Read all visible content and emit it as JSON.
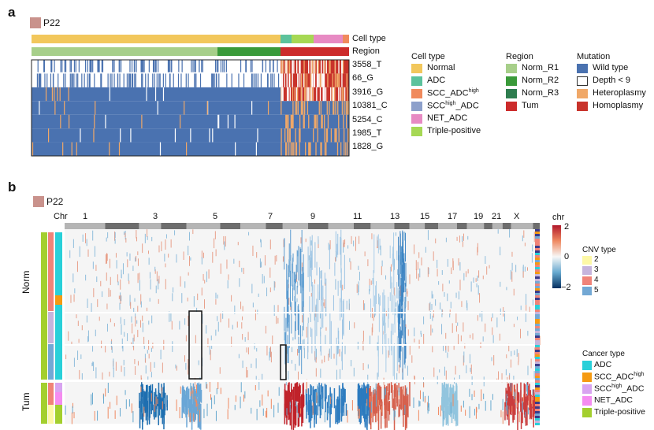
{
  "panel_a": {
    "label": "a",
    "patient": "P22",
    "patient_color": "#c9928c",
    "row_labels": [
      "Cell type",
      "Region"
    ],
    "mutations": [
      "3558_T",
      "66_G",
      "3916_G",
      "10381_C",
      "5254_C",
      "1985_T",
      "1828_G"
    ],
    "legends": {
      "cell_type": {
        "title": "Cell type",
        "items": [
          {
            "name": "Normal",
            "sup": "",
            "color": "#f2c75c"
          },
          {
            "name": "ADC",
            "sup": "",
            "color": "#5cc29c"
          },
          {
            "name": "SCC_ADC",
            "sup": "high",
            "color": "#f08a5d"
          },
          {
            "name": "SCC",
            "sup": "high",
            "suffix": "_ADC",
            "color": "#8da0cb"
          },
          {
            "name": "NET_ADC",
            "sup": "",
            "color": "#e78ac3"
          },
          {
            "name": "Triple-positive",
            "sup": "",
            "color": "#a6d854"
          }
        ]
      },
      "region": {
        "title": "Region",
        "items": [
          {
            "name": "Norm_R1",
            "color": "#a7cf8a"
          },
          {
            "name": "Norm_R2",
            "color": "#3a9a3a"
          },
          {
            "name": "Norm_R3",
            "color": "#2e7d4f"
          },
          {
            "name": "Tum",
            "color": "#cc2b2b"
          }
        ]
      },
      "mutation": {
        "title": "Mutation",
        "items": [
          {
            "name": "Wild type",
            "color": "#4a72b0"
          },
          {
            "name": "Depth < 9",
            "color": "#ffffff"
          },
          {
            "name": "Heteroplasmy",
            "color": "#f0a868"
          },
          {
            "name": "Homoplasmy",
            "color": "#c8332b"
          }
        ]
      }
    }
  },
  "panel_b": {
    "label": "b",
    "patient": "P22",
    "chr_label": "Chr",
    "chromosomes": [
      "1",
      "3",
      "5",
      "7",
      "9",
      "11",
      "13",
      "15",
      "17",
      "19",
      "21",
      "X"
    ],
    "side_groups": [
      "Norm",
      "Tum"
    ],
    "colorbar": {
      "title": "chr",
      "ticks": [
        "2",
        "0",
        "−2"
      ]
    },
    "legends": {
      "cnv_type": {
        "title": "CNV type",
        "items": [
          {
            "name": "2",
            "color": "#fdf8a6"
          },
          {
            "name": "3",
            "color": "#c6b4dc"
          },
          {
            "name": "4",
            "color": "#f08378"
          },
          {
            "name": "5",
            "color": "#73a8d4"
          }
        ]
      },
      "cancer_type": {
        "title": "Cancer type",
        "items": [
          {
            "name": "ADC",
            "sup": "",
            "color": "#29d0d9"
          },
          {
            "name": "SCC_ADC",
            "sup": "high",
            "color": "#f59a11"
          },
          {
            "name": "SCC",
            "sup": "high",
            "suffix": "_ADC",
            "color": "#d8a4f0"
          },
          {
            "name": "NET_ADC",
            "sup": "",
            "color": "#f58cf0"
          },
          {
            "name": "Triple-positive",
            "sup": "",
            "color": "#a3cf2e"
          }
        ]
      }
    }
  }
}
